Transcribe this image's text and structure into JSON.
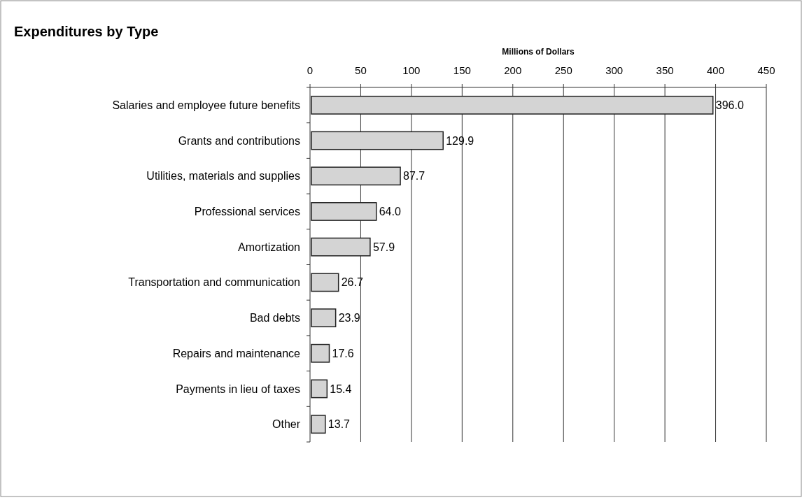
{
  "chart_data": {
    "type": "bar",
    "orientation": "horizontal",
    "title": "Expenditures by Type",
    "xlabel": "Millions of Dollars",
    "categories": [
      "Salaries and employee future benefits",
      "Grants and contributions",
      "Utilities, materials and supplies",
      "Professional services",
      "Amortization",
      "Transportation and communication",
      "Bad debts",
      "Repairs and maintenance",
      "Payments in lieu of taxes",
      "Other"
    ],
    "values": [
      396.0,
      129.9,
      87.7,
      64.0,
      57.9,
      26.7,
      23.9,
      17.6,
      15.4,
      13.7
    ],
    "value_labels": [
      "396.0",
      "129.9",
      "87.7",
      "64.0",
      "57.9",
      "26.7",
      "23.9",
      "17.6",
      "15.4",
      "13.7"
    ],
    "color": "#d4d4d4",
    "xlim": [
      0,
      450
    ],
    "xticks": [
      0,
      50,
      100,
      150,
      200,
      250,
      300,
      350,
      400,
      450
    ],
    "grid": "x"
  }
}
